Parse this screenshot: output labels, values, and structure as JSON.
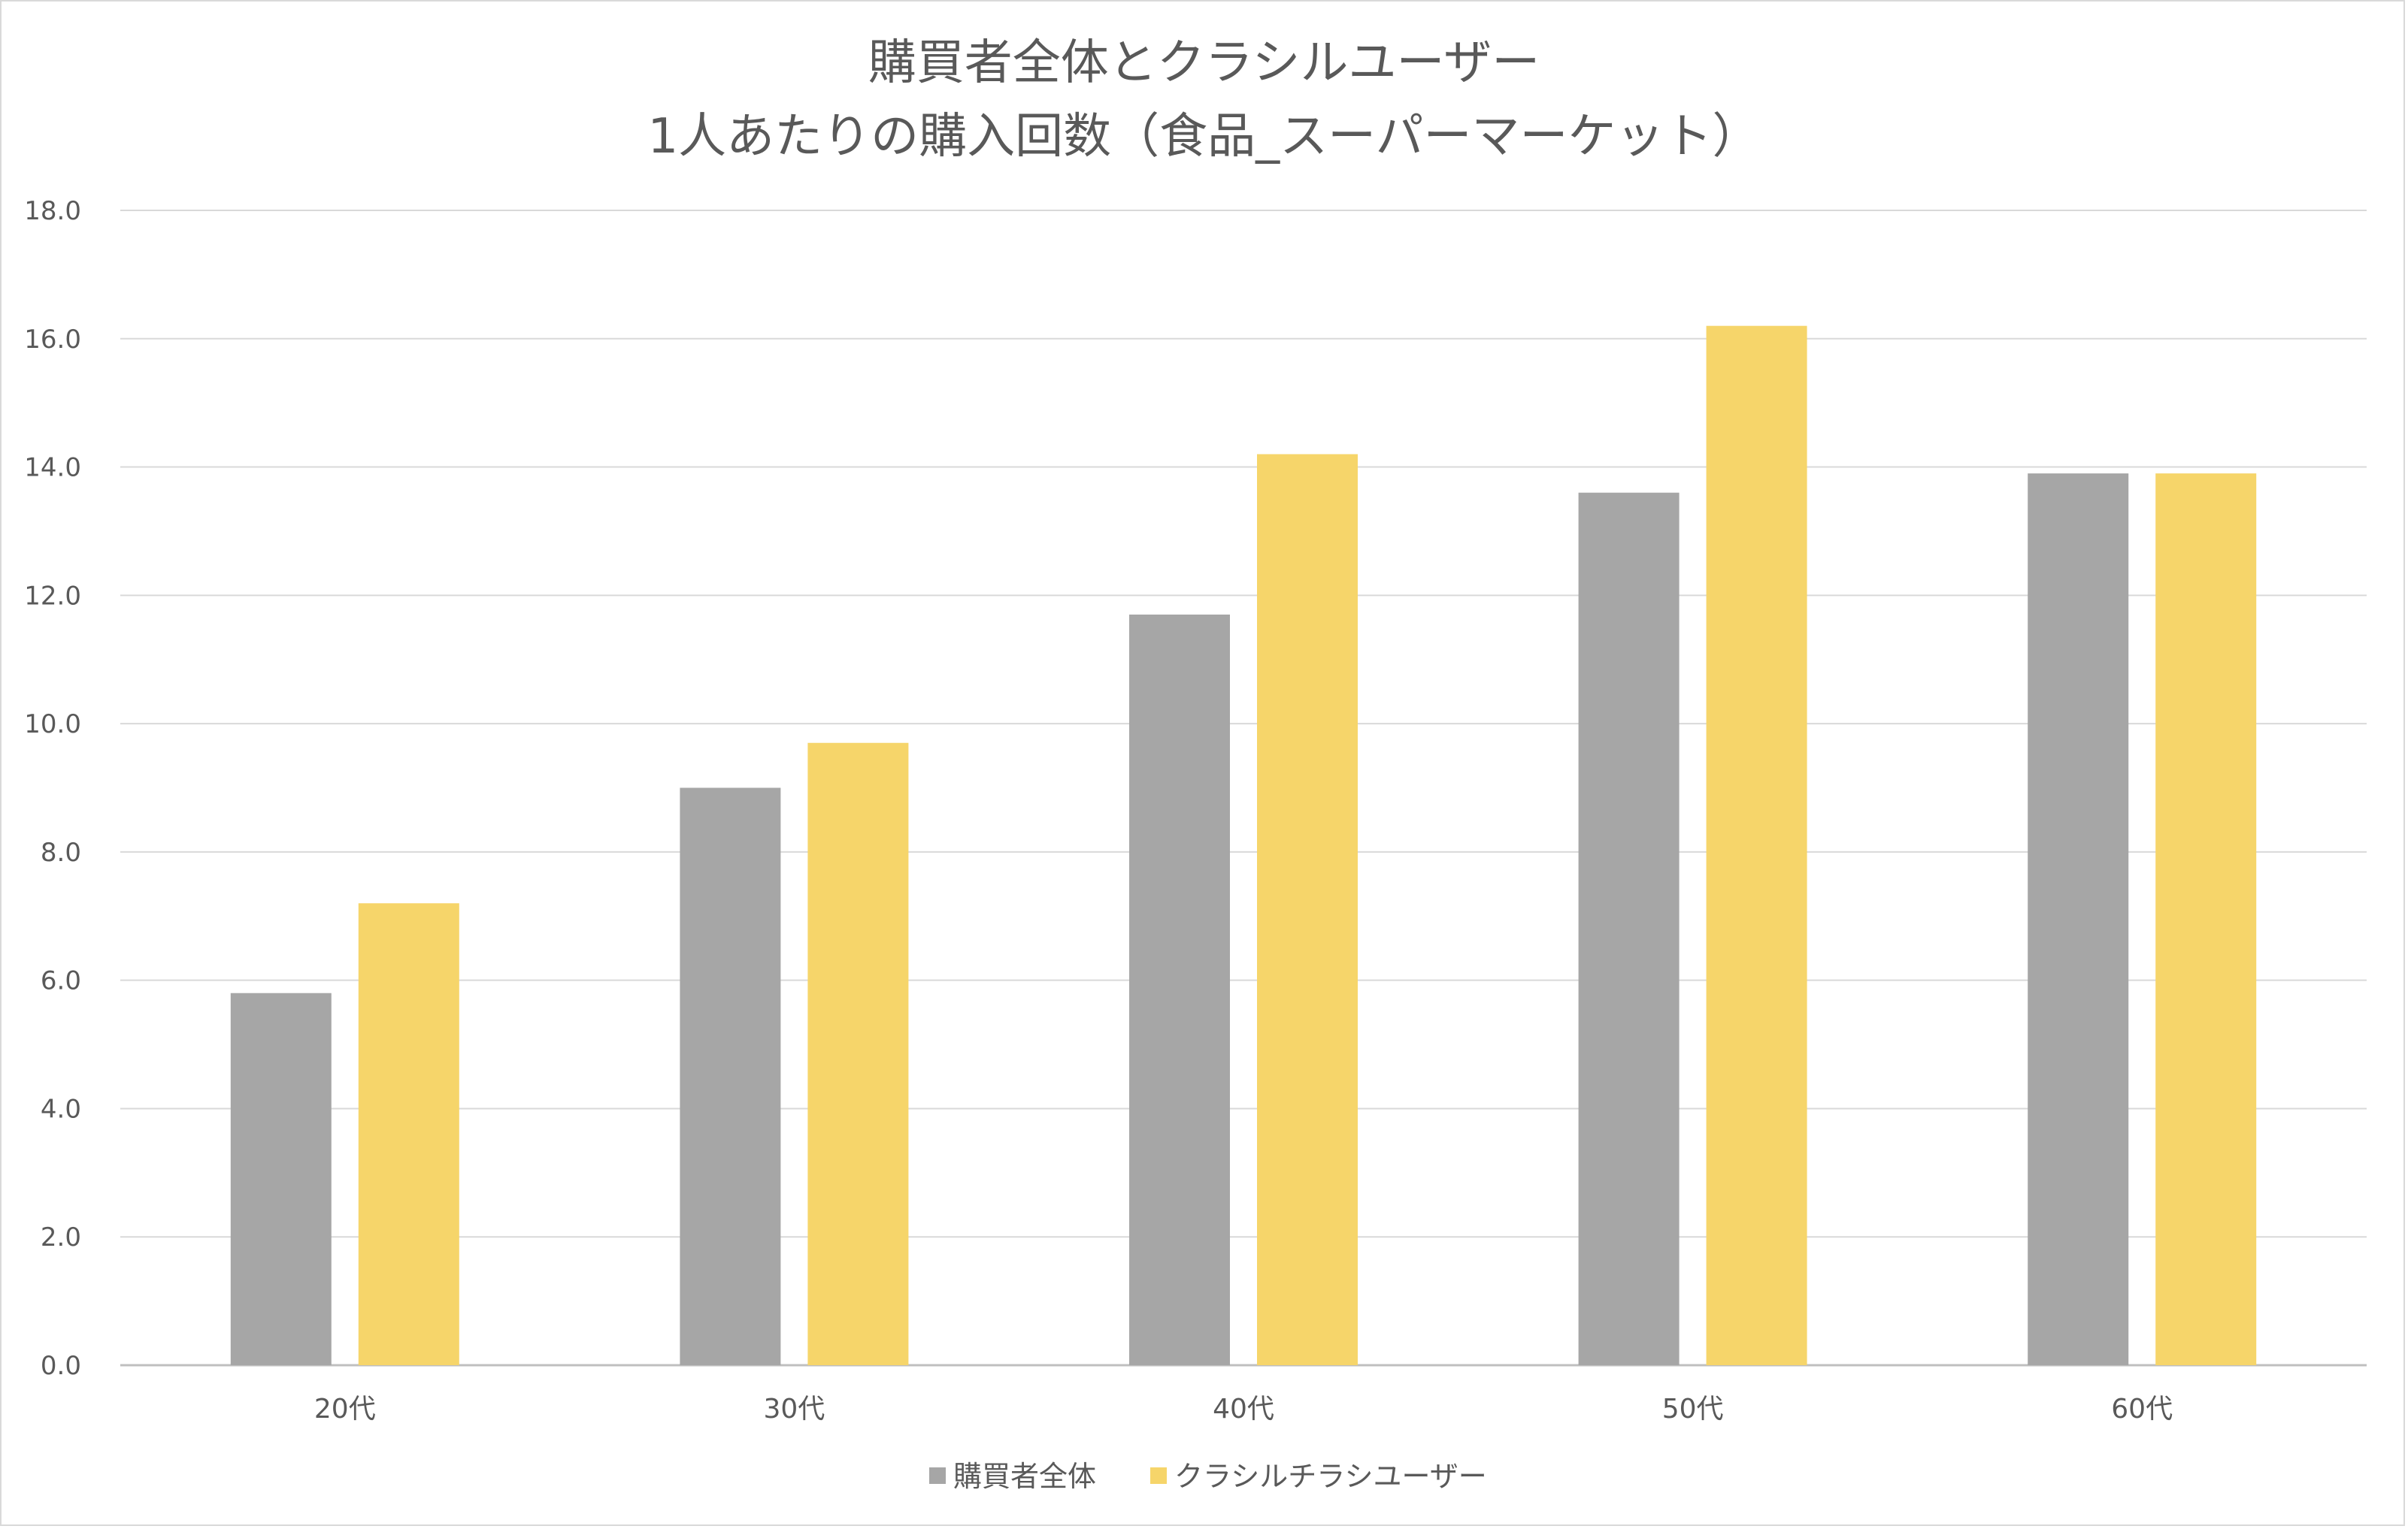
{
  "chart_data": {
    "type": "bar",
    "title": [
      "購買者全体とクラシルユーザー",
      "1人あたりの購入回数（食品_スーパーマーケット）"
    ],
    "categories": [
      "20代",
      "30代",
      "40代",
      "50代",
      "60代"
    ],
    "series": [
      {
        "name": "購買者全体",
        "color": "#a6a6a6",
        "values": [
          5.8,
          9.0,
          11.7,
          13.6,
          13.9
        ]
      },
      {
        "name": "クラシルチラシユーザー",
        "color": "#f6d56a",
        "values": [
          7.2,
          9.7,
          14.2,
          16.2,
          13.9
        ]
      }
    ],
    "ylim": [
      0,
      18
    ],
    "yticks": [
      "0.0",
      "2.0",
      "4.0",
      "6.0",
      "8.0",
      "10.0",
      "12.0",
      "14.0",
      "16.0",
      "18.0"
    ],
    "xlabel": "",
    "ylabel": "",
    "grid": true,
    "legend": "bottom-center"
  }
}
